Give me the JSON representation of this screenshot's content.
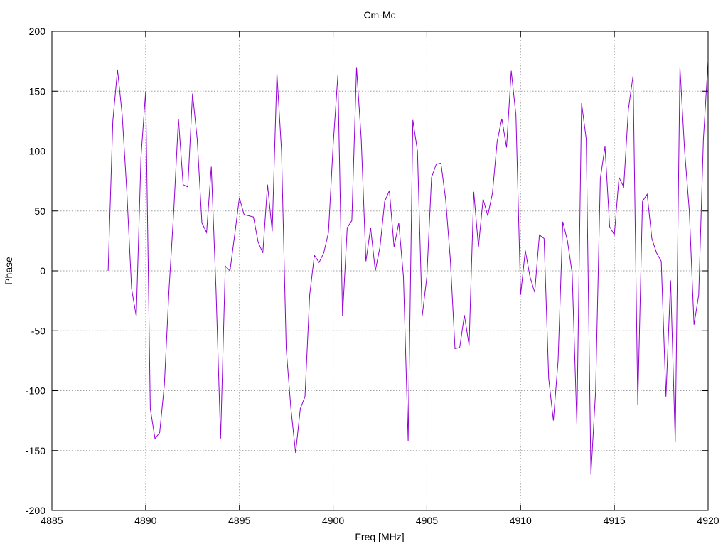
{
  "chart_data": {
    "type": "line",
    "title": "Cm-Mc",
    "xlabel": "Freq [MHz]",
    "ylabel": "Phase",
    "xlim": [
      4885,
      4920
    ],
    "ylim": [
      -200,
      200
    ],
    "xticks": [
      4885,
      4890,
      4895,
      4900,
      4905,
      4910,
      4915,
      4920
    ],
    "yticks": [
      -200,
      -150,
      -100,
      -50,
      0,
      50,
      100,
      150,
      200
    ],
    "grid": true,
    "legend": "none",
    "line_color": "#9400d3",
    "series": [
      {
        "x": [
          4888.0,
          4888.25,
          4888.5,
          4888.75,
          4889.0,
          4889.25,
          4889.5,
          4889.75,
          4890.0,
          4890.25,
          4890.5,
          4890.75,
          4891.0,
          4891.25,
          4891.5,
          4891.75,
          4892.0,
          4892.25,
          4892.5,
          4892.75,
          4893.0,
          4893.25,
          4893.5,
          4893.75,
          4894.0,
          4894.25,
          4894.5,
          4894.75,
          4895.0,
          4895.25,
          4895.5,
          4895.75,
          4896.0,
          4896.25,
          4896.5,
          4896.75,
          4897.0,
          4897.25,
          4897.5,
          4897.75,
          4898.0,
          4898.25,
          4898.5,
          4898.75,
          4899.0,
          4899.25,
          4899.5,
          4899.75,
          4900.0,
          4900.25,
          4900.5,
          4900.75,
          4901.0,
          4901.25,
          4901.5,
          4901.75,
          4902.0,
          4902.25,
          4902.5,
          4902.75,
          4903.0,
          4903.25,
          4903.5,
          4903.75,
          4904.0,
          4904.25,
          4904.5,
          4904.75,
          4905.0,
          4905.25,
          4905.5,
          4905.75,
          4906.0,
          4906.25,
          4906.5,
          4906.75,
          4907.0,
          4907.25,
          4907.5,
          4907.75,
          4908.0,
          4908.25,
          4908.5,
          4908.75,
          4909.0,
          4909.25,
          4909.5,
          4909.75,
          4910.0,
          4910.25,
          4910.5,
          4910.75,
          4911.0,
          4911.25,
          4911.5,
          4911.75,
          4912.0,
          4912.25,
          4912.5,
          4912.75,
          4913.0,
          4913.25,
          4913.5,
          4913.75,
          4914.0,
          4914.25,
          4914.5,
          4914.75,
          4915.0,
          4915.25,
          4915.5,
          4915.75,
          4916.0,
          4916.25,
          4916.5,
          4916.75,
          4917.0,
          4917.25,
          4917.5,
          4917.75,
          4918.0,
          4918.25,
          4918.5,
          4918.75,
          4919.0,
          4919.25,
          4919.5,
          4919.75,
          4920.0
        ],
        "values": [
          0,
          125,
          168,
          130,
          65,
          -15,
          -38,
          95,
          150,
          -115,
          -140,
          -135,
          -95,
          -15,
          50,
          127,
          72,
          70,
          148,
          110,
          40,
          32,
          87,
          -15,
          -140,
          4,
          0,
          30,
          61,
          47,
          46,
          45,
          24,
          15,
          72,
          33,
          165,
          100,
          -65,
          -115,
          -152,
          -115,
          -105,
          -20,
          13,
          7,
          15,
          32,
          105,
          163,
          -38,
          36,
          42,
          170,
          110,
          8,
          36,
          0,
          20,
          58,
          67,
          20,
          40,
          -5,
          -142,
          126,
          100,
          -38,
          -5,
          78,
          89,
          90,
          60,
          10,
          -65,
          -64,
          -37,
          -62,
          66,
          20,
          60,
          46,
          65,
          108,
          127,
          103,
          167,
          130,
          -20,
          17,
          -5,
          -18,
          30,
          27,
          -90,
          -125,
          -75,
          41,
          25,
          -2,
          -128,
          140,
          110,
          -170,
          -100,
          77,
          104,
          37,
          30,
          78,
          70,
          135,
          163,
          -112,
          58,
          64,
          27,
          15,
          8,
          -105,
          -8,
          -143,
          170,
          100,
          50,
          -45,
          -20,
          110,
          175
        ]
      }
    ]
  }
}
